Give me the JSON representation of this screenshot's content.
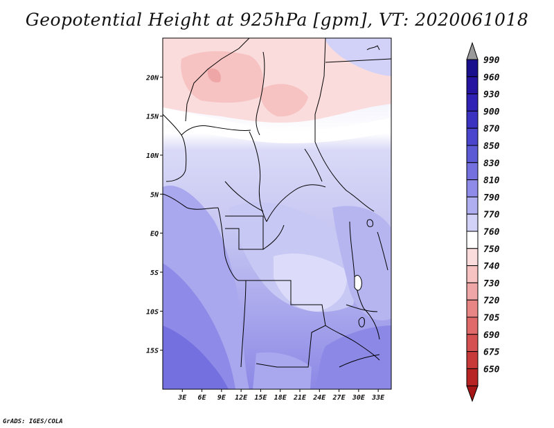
{
  "title": "Geopotential Height at 925hPa [gpm], VT: 2020061018",
  "credit": "GrADS: IGES/COLA",
  "map": {
    "lon_range": [
      0,
      35
    ],
    "lat_range": [
      -20,
      25
    ],
    "lat_ticks": [
      {
        "value": 20,
        "label": "20N"
      },
      {
        "value": 15,
        "label": "15N"
      },
      {
        "value": 10,
        "label": "10N"
      },
      {
        "value": 5,
        "label": "5N"
      },
      {
        "value": 0,
        "label": "EQ"
      },
      {
        "value": -5,
        "label": "5S"
      },
      {
        "value": -10,
        "label": "10S"
      },
      {
        "value": -15,
        "label": "15S"
      }
    ],
    "lon_ticks": [
      {
        "value": 3,
        "label": "3E"
      },
      {
        "value": 6,
        "label": "6E"
      },
      {
        "value": 9,
        "label": "9E"
      },
      {
        "value": 12,
        "label": "12E"
      },
      {
        "value": 15,
        "label": "15E"
      },
      {
        "value": 18,
        "label": "18E"
      },
      {
        "value": 21,
        "label": "21E"
      },
      {
        "value": 24,
        "label": "24E"
      },
      {
        "value": 27,
        "label": "27E"
      },
      {
        "value": 30,
        "label": "30E"
      },
      {
        "value": 33,
        "label": "33E"
      }
    ]
  },
  "colorbar": {
    "levels": [
      {
        "label": "990",
        "color": "#1a0f8c"
      },
      {
        "label": "960",
        "color": "#2414a0"
      },
      {
        "label": "930",
        "color": "#2f22b4"
      },
      {
        "label": "900",
        "color": "#3b32c2"
      },
      {
        "label": "870",
        "color": "#4a45cc"
      },
      {
        "label": "850",
        "color": "#5d5ad6"
      },
      {
        "label": "830",
        "color": "#7470e0"
      },
      {
        "label": "810",
        "color": "#8e8ce8"
      },
      {
        "label": "790",
        "color": "#aeaef0"
      },
      {
        "label": "770",
        "color": "#d2d2f8"
      },
      {
        "label": "760",
        "color": "#ffffff"
      },
      {
        "label": "750",
        "color": "#fbdcdc"
      },
      {
        "label": "740",
        "color": "#f6c2c2"
      },
      {
        "label": "730",
        "color": "#efa6a6"
      },
      {
        "label": "720",
        "color": "#e88686"
      },
      {
        "label": "705",
        "color": "#e06a6a"
      },
      {
        "label": "690",
        "color": "#d55050"
      },
      {
        "label": "675",
        "color": "#c83a3a"
      },
      {
        "label": "650",
        "color": "#b82424"
      }
    ],
    "top_arrow_color": "#9a9a9a",
    "bottom_arrow_color": "#a61616"
  }
}
